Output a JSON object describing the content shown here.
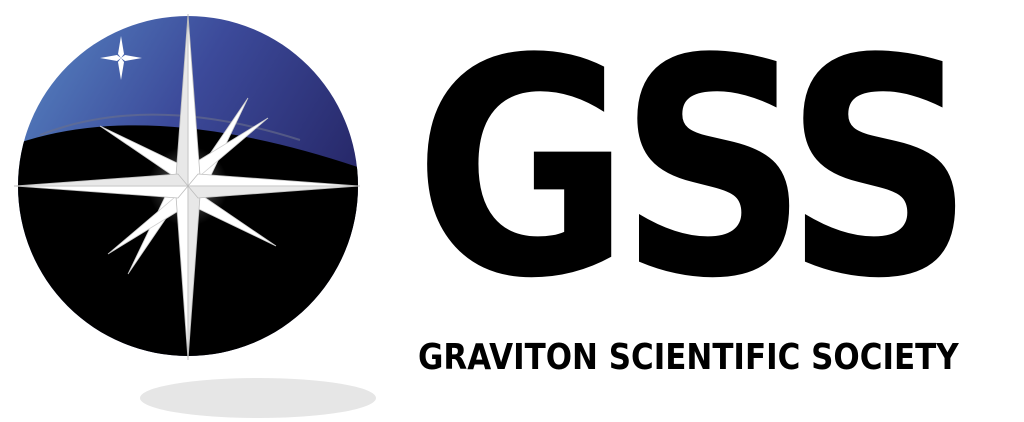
{
  "logo": {
    "wordmark": "GSS",
    "tagline": "GRAVITON SCIENTIFIC SOCIETY",
    "emblem_icon": "compass-star-globe-icon"
  },
  "colors": {
    "sky_top": "#5b8fc9",
    "sky_mid": "#3c4a9a",
    "sky_bottom": "#1e1a55",
    "globe_body": "#000000",
    "star_fill": "#ffffff",
    "text": "#000000",
    "shadow": "#e6e6e6"
  }
}
